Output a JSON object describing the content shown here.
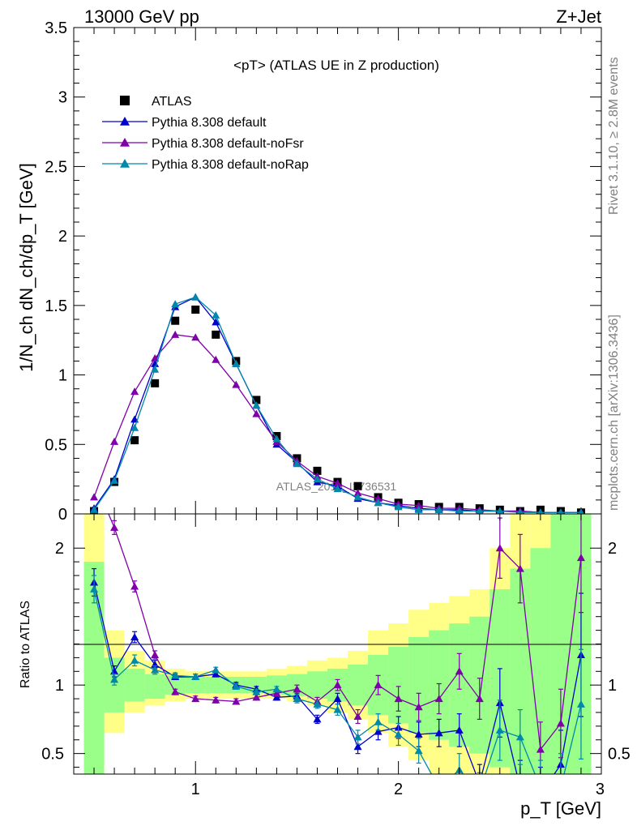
{
  "header": {
    "left": "13000 GeV pp",
    "right": "Z+Jet"
  },
  "side_text": {
    "rivet": "Rivet 3.1.10, ≥ 2.8M events",
    "mcplots": "mcplots.cern.ch [arXiv:1306.3436]"
  },
  "watermark": "ATLAS_2019_I1736531",
  "chart_data": [
    {
      "type": "line",
      "panel": "main",
      "title": "<pT> (ATLAS UE in Z production)",
      "ylabel": "1/N_ch dN_ch/dp_T [GeV]",
      "xlim": [
        0.4,
        3.0
      ],
      "ylim": [
        0,
        3.5
      ],
      "x_ticks": [
        1,
        2,
        3
      ],
      "y_ticks": [
        0,
        0.5,
        1,
        1.5,
        2,
        2.5,
        3,
        3.5
      ],
      "y_tick_labels": [
        "0",
        "0.5",
        "1",
        "1.5",
        "2",
        "2.5",
        "3",
        "3.5"
      ],
      "legend_position": "top-left",
      "x": [
        0.5,
        0.6,
        0.7,
        0.8,
        0.9,
        1.0,
        1.1,
        1.2,
        1.3,
        1.4,
        1.5,
        1.6,
        1.7,
        1.8,
        1.9,
        2.0,
        2.1,
        2.2,
        2.3,
        2.4,
        2.5,
        2.6,
        2.7,
        2.8,
        2.9
      ],
      "series": [
        {
          "name": "ATLAS",
          "color": "#000000",
          "marker": "square",
          "values": [
            0.02,
            0.23,
            0.53,
            0.94,
            1.39,
            1.47,
            1.29,
            1.1,
            0.82,
            0.56,
            0.4,
            0.31,
            0.23,
            0.2,
            0.12,
            0.08,
            0.07,
            0.05,
            0.05,
            0.04,
            0.03,
            0.02,
            0.03,
            0.02,
            0.01
          ]
        },
        {
          "name": "Pythia 8.308 default",
          "color": "#0000cc",
          "marker": "triangle",
          "values": [
            0.04,
            0.25,
            0.68,
            1.08,
            1.49,
            1.56,
            1.38,
            1.08,
            0.78,
            0.5,
            0.37,
            0.23,
            0.2,
            0.11,
            0.08,
            0.06,
            0.04,
            0.03,
            0.03,
            0.02,
            0.02,
            0.02,
            0.01,
            0.01,
            0.01
          ]
        },
        {
          "name": "Pythia 8.308 default-noFsr",
          "color": "#7f00aa",
          "marker": "triangle",
          "values": [
            0.12,
            0.52,
            0.88,
            1.12,
            1.29,
            1.27,
            1.11,
            0.93,
            0.72,
            0.52,
            0.38,
            0.27,
            0.22,
            0.15,
            0.11,
            0.07,
            0.06,
            0.04,
            0.04,
            0.03,
            0.02,
            0.02,
            0.01,
            0.01,
            0.01
          ]
        },
        {
          "name": "Pythia 8.308 default-noRap",
          "color": "#0088aa",
          "marker": "triangle",
          "values": [
            0.03,
            0.24,
            0.62,
            1.04,
            1.51,
            1.56,
            1.43,
            1.08,
            0.78,
            0.54,
            0.36,
            0.25,
            0.18,
            0.12,
            0.08,
            0.05,
            0.03,
            0.03,
            0.02,
            0.02,
            0.02,
            0.01,
            0.01,
            0.01,
            0.01
          ]
        }
      ]
    },
    {
      "type": "line",
      "panel": "ratio",
      "xlabel": "p_T [GeV]",
      "ylabel": "Ratio to ATLAS",
      "xlim": [
        0.4,
        3.0
      ],
      "ylim": [
        0.35,
        2.25
      ],
      "x_ticks": [
        1,
        2,
        3
      ],
      "x_tick_labels": [
        "1",
        "2",
        "3"
      ],
      "y_ticks": [
        0.5,
        1,
        2
      ],
      "y_tick_labels": [
        "0.5",
        "1",
        "2"
      ],
      "bin_edges": [
        0.45,
        0.55,
        0.65,
        0.75,
        0.85,
        0.95,
        1.05,
        1.15,
        1.25,
        1.35,
        1.45,
        1.55,
        1.65,
        1.75,
        1.85,
        1.95,
        2.05,
        2.15,
        2.25,
        2.35,
        2.45,
        2.55,
        2.65,
        2.75,
        2.85,
        2.95
      ],
      "band_yellow": [
        [
          0.3,
          2.3
        ],
        [
          0.65,
          1.4
        ],
        [
          0.8,
          1.25
        ],
        [
          0.85,
          1.18
        ],
        [
          0.88,
          1.12
        ],
        [
          0.9,
          1.1
        ],
        [
          0.9,
          1.1
        ],
        [
          0.9,
          1.1
        ],
        [
          0.9,
          1.1
        ],
        [
          0.9,
          1.12
        ],
        [
          0.88,
          1.14
        ],
        [
          0.85,
          1.18
        ],
        [
          0.8,
          1.2
        ],
        [
          0.75,
          1.25
        ],
        [
          0.65,
          1.4
        ],
        [
          0.55,
          1.45
        ],
        [
          0.45,
          1.55
        ],
        [
          0.35,
          1.6
        ],
        [
          0.3,
          1.65
        ],
        [
          0.3,
          1.7
        ],
        [
          0.3,
          2.0
        ],
        [
          0.3,
          2.25
        ],
        [
          0.3,
          2.25
        ],
        [
          0.3,
          2.25
        ],
        [
          0.3,
          2.25
        ]
      ],
      "band_green": [
        [
          0.3,
          1.9
        ],
        [
          0.8,
          1.2
        ],
        [
          0.88,
          1.12
        ],
        [
          0.9,
          1.08
        ],
        [
          0.93,
          1.07
        ],
        [
          0.94,
          1.06
        ],
        [
          0.94,
          1.06
        ],
        [
          0.94,
          1.06
        ],
        [
          0.94,
          1.06
        ],
        [
          0.93,
          1.07
        ],
        [
          0.92,
          1.08
        ],
        [
          0.9,
          1.1
        ],
        [
          0.88,
          1.12
        ],
        [
          0.85,
          1.15
        ],
        [
          0.78,
          1.22
        ],
        [
          0.72,
          1.28
        ],
        [
          0.65,
          1.35
        ],
        [
          0.6,
          1.4
        ],
        [
          0.55,
          1.45
        ],
        [
          0.5,
          1.5
        ],
        [
          0.4,
          1.7
        ],
        [
          0.3,
          1.85
        ],
        [
          0.3,
          2.0
        ],
        [
          0.3,
          2.25
        ],
        [
          0.3,
          2.25
        ]
      ],
      "x": [
        0.5,
        0.6,
        0.7,
        0.8,
        0.9,
        1.0,
        1.1,
        1.2,
        1.3,
        1.4,
        1.5,
        1.6,
        1.7,
        1.8,
        1.9,
        2.0,
        2.1,
        2.2,
        2.3,
        2.4,
        2.5,
        2.6,
        2.7,
        2.8,
        2.9
      ],
      "series": [
        {
          "name": "Pythia 8.308 default",
          "color": "#0000cc",
          "values": [
            1.75,
            1.1,
            1.35,
            1.15,
            1.06,
            1.06,
            1.08,
            1.0,
            0.97,
            0.91,
            0.92,
            0.75,
            0.9,
            0.55,
            0.66,
            0.69,
            0.64,
            0.65,
            0.67,
            0.28,
            0.87,
            0.25,
            0.2,
            0.42,
            1.22
          ],
          "err": [
            0.1,
            0.04,
            0.04,
            0.03,
            0.02,
            0.02,
            0.02,
            0.02,
            0.02,
            0.02,
            0.03,
            0.03,
            0.04,
            0.05,
            0.06,
            0.08,
            0.09,
            0.1,
            0.12,
            0.14,
            0.25,
            0.2,
            0.2,
            0.25,
            0.45
          ]
        },
        {
          "name": "Pythia 8.308 default-noFsr",
          "color": "#7f00aa",
          "values": [
            2.5,
            2.15,
            1.72,
            1.22,
            0.95,
            0.9,
            0.89,
            0.88,
            0.91,
            0.94,
            0.97,
            0.88,
            1.0,
            0.77,
            1.0,
            0.9,
            0.84,
            0.9,
            1.1,
            0.9,
            2.0,
            1.85,
            0.53,
            0.72,
            1.93
          ],
          "err": [
            0.1,
            0.05,
            0.04,
            0.03,
            0.02,
            0.02,
            0.02,
            0.02,
            0.02,
            0.02,
            0.03,
            0.03,
            0.04,
            0.05,
            0.07,
            0.09,
            0.1,
            0.11,
            0.13,
            0.15,
            0.22,
            0.25,
            0.2,
            0.25,
            0.4
          ]
        },
        {
          "name": "Pythia 8.308 default-noRap",
          "color": "#0088aa",
          "values": [
            1.7,
            1.04,
            1.18,
            1.11,
            1.07,
            1.06,
            1.11,
            0.99,
            0.95,
            0.97,
            0.9,
            0.86,
            0.82,
            0.62,
            0.73,
            0.64,
            0.52,
            0.25,
            0.38,
            0.22,
            0.67,
            0.62,
            0.25,
            0.25,
            0.86
          ],
          "err": [
            0.1,
            0.04,
            0.04,
            0.03,
            0.02,
            0.02,
            0.02,
            0.02,
            0.02,
            0.02,
            0.03,
            0.03,
            0.04,
            0.05,
            0.06,
            0.08,
            0.09,
            0.1,
            0.12,
            0.14,
            0.22,
            0.2,
            0.2,
            0.25,
            0.4
          ]
        }
      ]
    }
  ]
}
